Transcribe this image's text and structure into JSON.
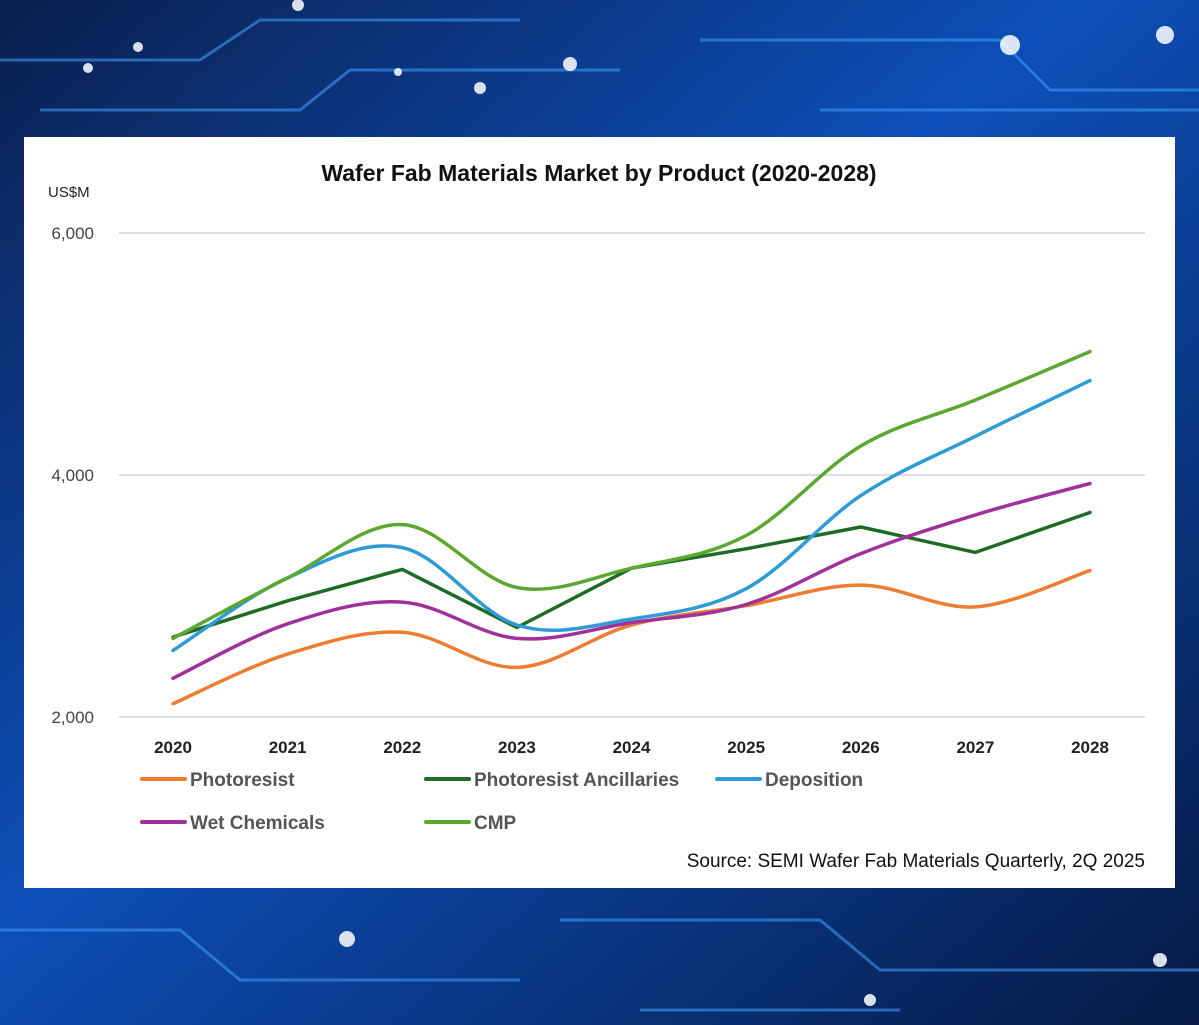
{
  "chart_data": {
    "type": "line",
    "title": "Wafer Fab Materials Market by Product (2020-2028)",
    "ylabel": "US$M",
    "xlabel": "",
    "ylim": [
      2000,
      6000
    ],
    "yticks": [
      2000,
      4000,
      6000
    ],
    "ytick_labels": [
      "2,000",
      "4,000",
      "6,000"
    ],
    "grid": true,
    "categories": [
      "2020",
      "2021",
      "2022",
      "2023",
      "2024",
      "2025",
      "2026",
      "2027",
      "2028"
    ],
    "series": [
      {
        "name": "Photoresist",
        "color": "#ED7D31",
        "values": [
          2110,
          2520,
          2700,
          2410,
          2760,
          2920,
          3090,
          2910,
          3210
        ]
      },
      {
        "name": "Photoresist Ancillaries",
        "color": "#1E6B25",
        "values": [
          2660,
          2960,
          3220,
          2740,
          3230,
          3390,
          3570,
          3360,
          3690
        ]
      },
      {
        "name": "Deposition",
        "color": "#2E9BD6",
        "values": [
          2550,
          3150,
          3400,
          2760,
          2810,
          3060,
          3830,
          4320,
          4780
        ]
      },
      {
        "name": "Wet Chemicals",
        "color": "#A0309A",
        "values": [
          2320,
          2770,
          2950,
          2650,
          2780,
          2930,
          3350,
          3670,
          3930
        ]
      },
      {
        "name": "CMP",
        "color": "#5BA830",
        "values": [
          2650,
          3150,
          3590,
          3070,
          3230,
          3500,
          4240,
          4620,
          5020
        ]
      }
    ],
    "legend_position": "bottom",
    "source": "Source: SEMI Wafer Fab Materials Quarterly, 2Q 2025"
  }
}
